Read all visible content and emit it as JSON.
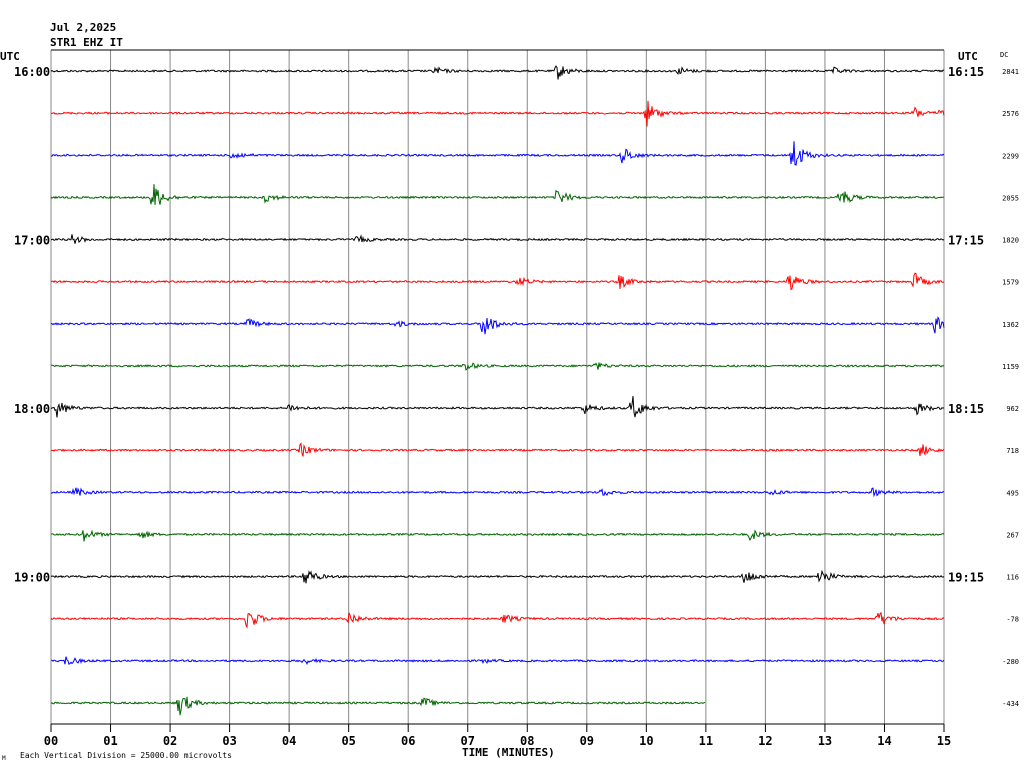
{
  "header": {
    "date": "Jul 2,2025",
    "station": "STR1 EHZ IT"
  },
  "left_axis_title": "UTC",
  "right_axis_title": "UTC",
  "dc_title": "DC",
  "footer": {
    "xlabel": "TIME (MINUTES)",
    "scale_note": "Each Vertical Division = 25000.00 microvolts",
    "corner_mark": "M"
  },
  "chart_data": {
    "type": "line",
    "title": "Jul 2,2025 STR1 EHZ IT",
    "xlabel": "TIME (MINUTES)",
    "ylabel": "UTC",
    "xlim": [
      0,
      15
    ],
    "x_ticks": [
      "00",
      "01",
      "02",
      "03",
      "04",
      "05",
      "06",
      "07",
      "08",
      "09",
      "10",
      "11",
      "12",
      "13",
      "14",
      "15"
    ],
    "left_time_labels": [
      "16:00",
      "",
      "",
      "",
      "17:00",
      "",
      "",
      "",
      "18:00",
      "",
      "",
      "",
      "19:00",
      "",
      "",
      ""
    ],
    "right_time_labels": [
      "16:15",
      "",
      "",
      "",
      "17:15",
      "",
      "",
      "",
      "18:15",
      "",
      "",
      "",
      "19:15",
      "",
      "",
      ""
    ],
    "dc_values": [
      "2841",
      "2576",
      "2299",
      "2055",
      "1820",
      "1579",
      "1362",
      "1159",
      "962",
      "718",
      "495",
      "267",
      "116",
      "-78",
      "-280",
      "-434"
    ],
    "colors": [
      "#000000",
      "#ff0000",
      "#0000ff",
      "#006400"
    ],
    "grid": true,
    "series": [
      {
        "row": 0,
        "color": "#000000",
        "x_end": 15,
        "events": [
          {
            "t": 6.45,
            "amp": 4
          },
          {
            "t": 8.5,
            "amp": 9
          },
          {
            "t": 10.55,
            "amp": 4
          },
          {
            "t": 13.15,
            "amp": 3
          }
        ]
      },
      {
        "row": 1,
        "color": "#ff0000",
        "x_end": 15,
        "events": [
          {
            "t": 10.0,
            "amp": 14
          },
          {
            "t": 14.5,
            "amp": 6
          },
          {
            "t": 14.95,
            "amp": 5
          }
        ]
      },
      {
        "row": 2,
        "color": "#0000ff",
        "x_end": 15,
        "events": [
          {
            "t": 3.05,
            "amp": 5
          },
          {
            "t": 9.6,
            "amp": 9
          },
          {
            "t": 12.45,
            "amp": 20
          }
        ]
      },
      {
        "row": 3,
        "color": "#006400",
        "x_end": 15,
        "events": [
          {
            "t": 1.7,
            "amp": 17
          },
          {
            "t": 3.6,
            "amp": 5
          },
          {
            "t": 8.5,
            "amp": 9
          },
          {
            "t": 13.25,
            "amp": 11
          }
        ]
      },
      {
        "row": 4,
        "color": "#000000",
        "x_end": 15,
        "events": [
          {
            "t": 0.35,
            "amp": 5
          },
          {
            "t": 5.15,
            "amp": 4
          }
        ]
      },
      {
        "row": 5,
        "color": "#ff0000",
        "x_end": 15,
        "events": [
          {
            "t": 7.85,
            "amp": 5
          },
          {
            "t": 9.55,
            "amp": 7
          },
          {
            "t": 12.4,
            "amp": 11
          },
          {
            "t": 14.5,
            "amp": 9
          }
        ]
      },
      {
        "row": 6,
        "color": "#0000ff",
        "x_end": 15,
        "events": [
          {
            "t": 3.3,
            "amp": 5
          },
          {
            "t": 5.8,
            "amp": 3
          },
          {
            "t": 7.25,
            "amp": 16
          },
          {
            "t": 14.85,
            "amp": 9
          }
        ]
      },
      {
        "row": 7,
        "color": "#006400",
        "x_end": 15,
        "events": [
          {
            "t": 6.95,
            "amp": 5
          },
          {
            "t": 9.15,
            "amp": 4
          }
        ]
      },
      {
        "row": 8,
        "color": "#000000",
        "x_end": 15,
        "events": [
          {
            "t": 0.1,
            "amp": 9
          },
          {
            "t": 4.0,
            "amp": 4
          },
          {
            "t": 8.95,
            "amp": 6
          },
          {
            "t": 9.75,
            "amp": 15
          },
          {
            "t": 14.55,
            "amp": 6
          }
        ]
      },
      {
        "row": 9,
        "color": "#ff0000",
        "x_end": 15,
        "events": [
          {
            "t": 4.2,
            "amp": 7
          },
          {
            "t": 14.6,
            "amp": 7
          }
        ]
      },
      {
        "row": 10,
        "color": "#0000ff",
        "x_end": 15,
        "events": [
          {
            "t": 0.4,
            "amp": 5
          },
          {
            "t": 9.25,
            "amp": 4
          },
          {
            "t": 12.1,
            "amp": 3
          },
          {
            "t": 13.8,
            "amp": 4
          }
        ]
      },
      {
        "row": 11,
        "color": "#006400",
        "x_end": 15,
        "events": [
          {
            "t": 0.55,
            "amp": 7
          },
          {
            "t": 1.5,
            "amp": 4
          },
          {
            "t": 11.75,
            "amp": 6
          }
        ]
      },
      {
        "row": 12,
        "color": "#000000",
        "x_end": 15,
        "events": [
          {
            "t": 4.25,
            "amp": 11
          },
          {
            "t": 11.65,
            "amp": 9
          },
          {
            "t": 12.9,
            "amp": 10
          }
        ]
      },
      {
        "row": 13,
        "color": "#ff0000",
        "x_end": 15,
        "events": [
          {
            "t": 3.3,
            "amp": 13
          },
          {
            "t": 5.0,
            "amp": 7
          },
          {
            "t": 7.6,
            "amp": 5
          },
          {
            "t": 13.9,
            "amp": 9
          }
        ]
      },
      {
        "row": 14,
        "color": "#0000ff",
        "x_end": 15,
        "events": [
          {
            "t": 0.25,
            "amp": 5
          },
          {
            "t": 4.25,
            "amp": 3
          },
          {
            "t": 7.25,
            "amp": 2
          }
        ]
      },
      {
        "row": 15,
        "color": "#006400",
        "x_end": 11,
        "events": [
          {
            "t": 2.15,
            "amp": 14
          },
          {
            "t": 6.25,
            "amp": 6
          }
        ]
      }
    ]
  }
}
